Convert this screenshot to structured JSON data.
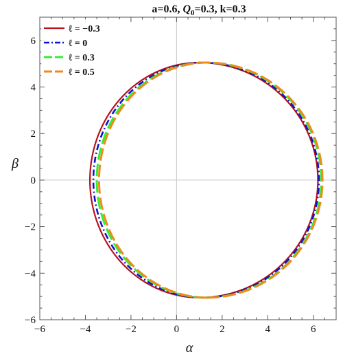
{
  "chart_data": {
    "type": "line",
    "title": {
      "prefix": "a=0.6, ",
      "q_symbol": "Q",
      "q_subscript": "0",
      "suffix": "=0.3, k=0.3"
    },
    "xlabel": "α",
    "ylabel": "β",
    "xlim": [
      -6,
      7
    ],
    "ylim": [
      -6,
      7
    ],
    "xticks": [
      -6,
      -4,
      -2,
      0,
      2,
      4,
      6
    ],
    "yticks": [
      -6,
      -4,
      -2,
      0,
      2,
      4,
      6
    ],
    "grid": false,
    "reference_lines": [
      "x=0",
      "y=0"
    ],
    "legend": {
      "position": "top-left"
    },
    "series": [
      {
        "name": "ℓ = −0.3",
        "color": "#b5121b",
        "style": "solid",
        "shape": "circle-like closed curve",
        "x_min": -3.8,
        "x_max": 6.2,
        "y_min": -5.05,
        "y_max": 5.05,
        "x_at_ymax": 1.0
      },
      {
        "name": "ℓ = 0",
        "color": "#1010d0",
        "style": "dash-dot",
        "shape": "circle-like closed curve",
        "x_min": -3.65,
        "x_max": 6.25,
        "y_min": -5.05,
        "y_max": 5.05,
        "x_at_ymax": 1.15
      },
      {
        "name": "ℓ = 0.3",
        "color": "#33ee33",
        "style": "long-dash",
        "shape": "circle-like closed curve",
        "x_min": -3.5,
        "x_max": 6.35,
        "y_min": -5.05,
        "y_max": 5.05,
        "x_at_ymax": 1.3
      },
      {
        "name": "ℓ = 0.5",
        "color": "#f08a1c",
        "style": "long-dash",
        "shape": "circle-like closed curve",
        "x_min": -3.4,
        "x_max": 6.4,
        "y_min": -5.05,
        "y_max": 5.05,
        "x_at_ymax": 1.35
      }
    ]
  }
}
